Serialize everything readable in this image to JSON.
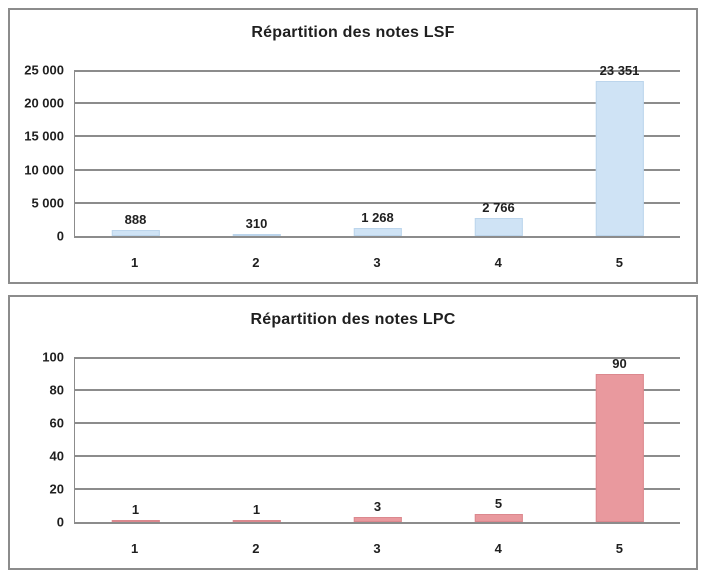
{
  "style": {
    "panel_border": "#8c8c8c",
    "grid_color": "#8c8c8c",
    "axis_color": "#8c8c8c",
    "text_color": "#1f1f1f",
    "background": "#ffffff"
  },
  "chart_data": [
    {
      "type": "bar",
      "title": "Répartition des notes LSF",
      "categories": [
        "1",
        "2",
        "3",
        "4",
        "5"
      ],
      "values": [
        888,
        310,
        1268,
        2766,
        23351
      ],
      "value_labels": [
        "888",
        "310",
        "1 268",
        "2 766",
        "23 351"
      ],
      "xlabel": "",
      "ylabel": "",
      "ylim": [
        0,
        25000
      ],
      "ytick_values": [
        0,
        5000,
        10000,
        15000,
        20000,
        25000
      ],
      "ytick_labels": [
        "0",
        "5 000",
        "10 000",
        "15 000",
        "20 000",
        "25 000"
      ],
      "grid": true,
      "legend": "none",
      "bar_fill": "#cfe3f5",
      "bar_border": "#bcd5ec"
    },
    {
      "type": "bar",
      "title": "Répartition des notes LPC",
      "categories": [
        "1",
        "2",
        "3",
        "4",
        "5"
      ],
      "values": [
        1,
        1,
        3,
        5,
        90
      ],
      "value_labels": [
        "1",
        "1",
        "3",
        "5",
        "90"
      ],
      "xlabel": "",
      "ylabel": "",
      "ylim": [
        0,
        100
      ],
      "ytick_values": [
        0,
        20,
        40,
        60,
        80,
        100
      ],
      "ytick_labels": [
        "0",
        "20",
        "40",
        "60",
        "80",
        "100"
      ],
      "grid": true,
      "legend": "none",
      "bar_fill": "#e9999e",
      "bar_border": "#db888e"
    }
  ]
}
